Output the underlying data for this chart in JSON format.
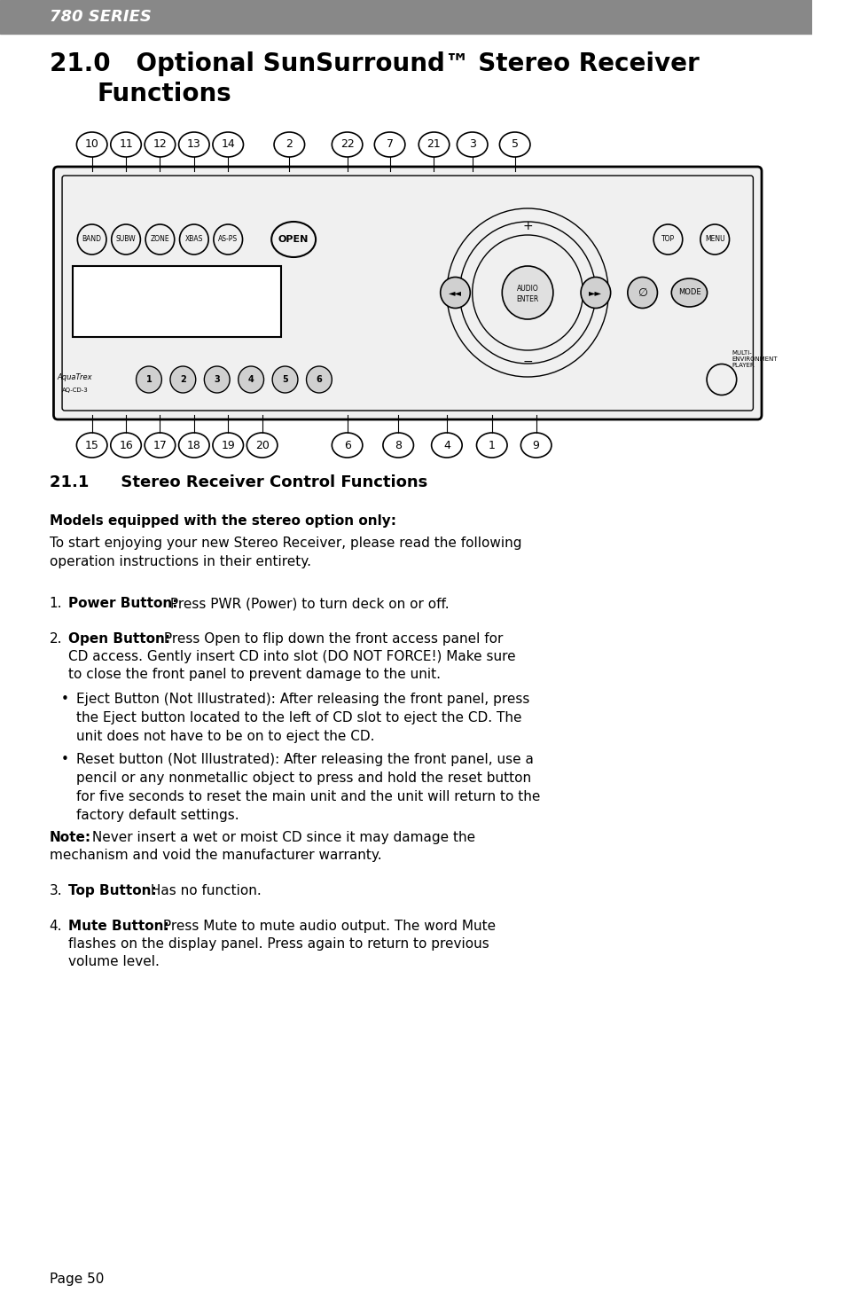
{
  "page_bg": "#ffffff",
  "header_bg": "#555555",
  "header_text": "780 SERIES",
  "header_text_color": "#ffffff",
  "section_title_line1": "21.0   Optional SunSurround™ Stereo Receiver",
  "section_title_line2": "        Functions",
  "section_title_fontsize": 20,
  "subsection_title": "21.1  Stereo Receiver Control Functions",
  "subsection_fontsize": 13,
  "body_fontsize": 11,
  "body_text_bold1": "Models equipped with the stereo option only:",
  "body_text1": "To start enjoying your new Stereo Receiver, please read the following\noperation instructions in their entirety.",
  "page_num": "Page 50",
  "top_labels": [
    "10",
    "11",
    "12",
    "13",
    "14",
    "2",
    "22",
    "7",
    "21",
    "3",
    "5"
  ],
  "top_x": [
    108,
    148,
    188,
    228,
    268,
    340,
    408,
    458,
    510,
    555,
    605
  ],
  "bot_labels": [
    "15",
    "16",
    "17",
    "18",
    "19",
    "20",
    "6",
    "8",
    "4",
    "1",
    "9"
  ],
  "bot_x2": [
    108,
    148,
    188,
    228,
    268,
    308,
    408,
    468,
    525,
    578,
    630
  ]
}
